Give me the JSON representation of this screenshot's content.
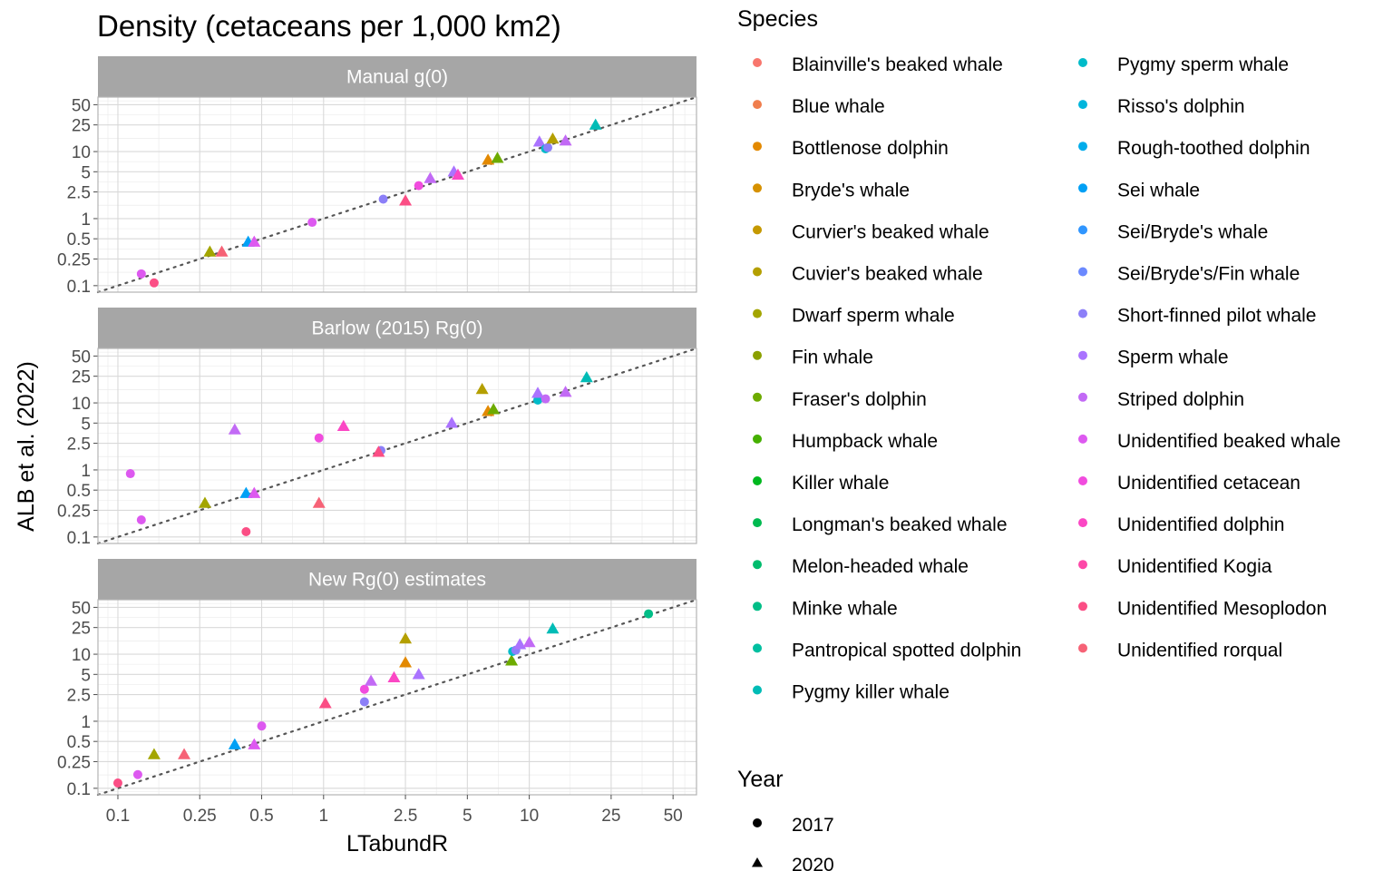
{
  "chart_data": {
    "type": "scatter",
    "title": "Density (cetaceans per 1,000 km2)",
    "xlabel": "LTabundR",
    "ylabel": "ALB et al. (2022)",
    "x_scale": "log10",
    "y_scale": "log10",
    "xlim": [
      0.08,
      65
    ],
    "ylim": [
      0.08,
      65
    ],
    "x_ticks": [
      "0.1",
      "0.25",
      "0.5",
      "1",
      "2.5",
      "5",
      "10",
      "25",
      "50"
    ],
    "y_ticks": [
      "0.1",
      "0.25",
      "0.5",
      "1",
      "2.5",
      "5",
      "10",
      "25",
      "50"
    ],
    "reference_line": "y = x",
    "panels": [
      {
        "label": "Manual g(0)",
        "points": [
          {
            "species": "Unidentified beaked whale",
            "year": "2017",
            "x": 0.13,
            "y": 0.15
          },
          {
            "species": "Unidentified Mesoplodon",
            "year": "2017",
            "x": 0.15,
            "y": 0.11
          },
          {
            "species": "Dwarf sperm whale",
            "year": "2020",
            "x": 0.28,
            "y": 0.32
          },
          {
            "species": "Unidentified rorqual",
            "year": "2020",
            "x": 0.32,
            "y": 0.32
          },
          {
            "species": "Sei whale",
            "year": "2020",
            "x": 0.43,
            "y": 0.45
          },
          {
            "species": "Unidentified beaked whale",
            "year": "2020",
            "x": 0.46,
            "y": 0.45
          },
          {
            "species": "Unidentified beaked whale",
            "year": "2017",
            "x": 0.88,
            "y": 0.88
          },
          {
            "species": "Short-finned pilot whale",
            "year": "2017",
            "x": 1.95,
            "y": 1.95
          },
          {
            "species": "Unidentified Mesoplodon",
            "year": "2020",
            "x": 2.5,
            "y": 1.85
          },
          {
            "species": "Unidentified cetacean",
            "year": "2017",
            "x": 2.9,
            "y": 3.1
          },
          {
            "species": "Striped dolphin",
            "year": "2020",
            "x": 3.3,
            "y": 4.0
          },
          {
            "species": "Sperm whale",
            "year": "2020",
            "x": 4.3,
            "y": 5.0
          },
          {
            "species": "Unidentified dolphin",
            "year": "2020",
            "x": 4.5,
            "y": 4.5
          },
          {
            "species": "Bottlenose dolphin",
            "year": "2020",
            "x": 6.3,
            "y": 7.5
          },
          {
            "species": "Fraser's dolphin",
            "year": "2020",
            "x": 7.0,
            "y": 8.0
          },
          {
            "species": "Sperm whale",
            "year": "2020",
            "x": 11.2,
            "y": 14.0
          },
          {
            "species": "Pygmy sperm whale",
            "year": "2017",
            "x": 12.0,
            "y": 11.0
          },
          {
            "species": "Short-finned pilot whale",
            "year": "2017",
            "x": 12.3,
            "y": 11.5
          },
          {
            "species": "Cuvier's beaked whale",
            "year": "2020",
            "x": 13.0,
            "y": 15.5
          },
          {
            "species": "Striped dolphin",
            "year": "2020",
            "x": 15.0,
            "y": 14.5
          },
          {
            "species": "Pygmy killer whale",
            "year": "2020",
            "x": 21.0,
            "y": 25.0
          }
        ]
      },
      {
        "label": "Barlow (2015) Rg(0)",
        "points": [
          {
            "species": "Unidentified beaked whale",
            "year": "2017",
            "x": 0.115,
            "y": 0.88
          },
          {
            "species": "Unidentified beaked whale",
            "year": "2017",
            "x": 0.13,
            "y": 0.18
          },
          {
            "species": "Dwarf sperm whale",
            "year": "2020",
            "x": 0.265,
            "y": 0.32
          },
          {
            "species": "Striped dolphin",
            "year": "2020",
            "x": 0.37,
            "y": 4.0
          },
          {
            "species": "Unidentified Mesoplodon",
            "year": "2017",
            "x": 0.42,
            "y": 0.12
          },
          {
            "species": "Sei whale",
            "year": "2020",
            "x": 0.42,
            "y": 0.45
          },
          {
            "species": "Unidentified beaked whale",
            "year": "2020",
            "x": 0.46,
            "y": 0.45
          },
          {
            "species": "Unidentified cetacean",
            "year": "2017",
            "x": 0.95,
            "y": 3.0
          },
          {
            "species": "Unidentified rorqual",
            "year": "2020",
            "x": 0.95,
            "y": 0.32
          },
          {
            "species": "Unidentified dolphin",
            "year": "2020",
            "x": 1.25,
            "y": 4.5
          },
          {
            "species": "Short-finned pilot whale",
            "year": "2017",
            "x": 1.9,
            "y": 1.95
          },
          {
            "species": "Unidentified Mesoplodon",
            "year": "2020",
            "x": 1.85,
            "y": 1.85
          },
          {
            "species": "Sperm whale",
            "year": "2020",
            "x": 4.2,
            "y": 5.0
          },
          {
            "species": "Cuvier's beaked whale",
            "year": "2020",
            "x": 5.9,
            "y": 16.0
          },
          {
            "species": "Bottlenose dolphin",
            "year": "2020",
            "x": 6.3,
            "y": 7.5
          },
          {
            "species": "Fraser's dolphin",
            "year": "2020",
            "x": 6.7,
            "y": 8.0
          },
          {
            "species": "Pygmy sperm whale",
            "year": "2017",
            "x": 11.0,
            "y": 11.0
          },
          {
            "species": "Sperm whale",
            "year": "2020",
            "x": 11.0,
            "y": 14.0
          },
          {
            "species": "Striped dolphin",
            "year": "2017",
            "x": 12.0,
            "y": 11.5
          },
          {
            "species": "Striped dolphin",
            "year": "2020",
            "x": 15.0,
            "y": 14.5
          },
          {
            "species": "Pygmy killer whale",
            "year": "2020",
            "x": 19.0,
            "y": 24.0
          }
        ]
      },
      {
        "label": "New Rg(0) estimates",
        "points": [
          {
            "species": "Unidentified Mesoplodon",
            "year": "2017",
            "x": 0.1,
            "y": 0.12
          },
          {
            "species": "Unidentified beaked whale",
            "year": "2017",
            "x": 0.125,
            "y": 0.16
          },
          {
            "species": "Dwarf sperm whale",
            "year": "2020",
            "x": 0.15,
            "y": 0.32
          },
          {
            "species": "Unidentified rorqual",
            "year": "2020",
            "x": 0.21,
            "y": 0.32
          },
          {
            "species": "Sei whale",
            "year": "2020",
            "x": 0.37,
            "y": 0.45
          },
          {
            "species": "Unidentified beaked whale",
            "year": "2020",
            "x": 0.46,
            "y": 0.45
          },
          {
            "species": "Unidentified beaked whale",
            "year": "2017",
            "x": 0.5,
            "y": 0.85
          },
          {
            "species": "Unidentified Mesoplodon",
            "year": "2020",
            "x": 1.02,
            "y": 1.85
          },
          {
            "species": "Unidentified cetacean",
            "year": "2017",
            "x": 1.58,
            "y": 3.0
          },
          {
            "species": "Short-finned pilot whale",
            "year": "2017",
            "x": 1.58,
            "y": 1.95
          },
          {
            "species": "Striped dolphin",
            "year": "2020",
            "x": 1.7,
            "y": 4.0
          },
          {
            "species": "Unidentified dolphin",
            "year": "2020",
            "x": 2.2,
            "y": 4.5
          },
          {
            "species": "Cuvier's beaked whale",
            "year": "2020",
            "x": 2.5,
            "y": 17.0
          },
          {
            "species": "Bottlenose dolphin",
            "year": "2020",
            "x": 2.5,
            "y": 7.5
          },
          {
            "species": "Sperm whale",
            "year": "2020",
            "x": 2.9,
            "y": 5.0
          },
          {
            "species": "Fraser's dolphin",
            "year": "2020",
            "x": 8.2,
            "y": 8.0
          },
          {
            "species": "Pygmy sperm whale",
            "year": "2017",
            "x": 8.3,
            "y": 11.0
          },
          {
            "species": "Short-finned pilot whale",
            "year": "2017",
            "x": 8.6,
            "y": 11.5
          },
          {
            "species": "Sperm whale",
            "year": "2020",
            "x": 9.0,
            "y": 14.0
          },
          {
            "species": "Striped dolphin",
            "year": "2020",
            "x": 10.0,
            "y": 15.0
          },
          {
            "species": "Pygmy killer whale",
            "year": "2020",
            "x": 13.0,
            "y": 24.0
          },
          {
            "species": "Minke whale",
            "year": "2017",
            "x": 38.0,
            "y": 40.0
          }
        ]
      }
    ],
    "legend": {
      "species_title": "Species",
      "species": [
        {
          "name": "Blainville's beaked whale",
          "color": "#F8766D"
        },
        {
          "name": "Blue whale",
          "color": "#F07E4D"
        },
        {
          "name": "Bottlenose dolphin",
          "color": "#E38900"
        },
        {
          "name": "Bryde's whale",
          "color": "#D69100"
        },
        {
          "name": "Curvier's beaked whale",
          "color": "#C59900"
        },
        {
          "name": "Cuvier's beaked whale",
          "color": "#B49F00"
        },
        {
          "name": "Dwarf sperm whale",
          "color": "#A3A500"
        },
        {
          "name": "Fin whale",
          "color": "#8BA000"
        },
        {
          "name": "Fraser's dolphin",
          "color": "#6DAB00"
        },
        {
          "name": "Humpback whale",
          "color": "#45B000"
        },
        {
          "name": "Killer whale",
          "color": "#00B81F"
        },
        {
          "name": "Longman's beaked whale",
          "color": "#00BA50"
        },
        {
          "name": "Melon-headed whale",
          "color": "#00BC6D"
        },
        {
          "name": "Minke whale",
          "color": "#00BE87"
        },
        {
          "name": "Pantropical spotted dolphin",
          "color": "#00BFA0"
        },
        {
          "name": "Pygmy killer whale",
          "color": "#00BCB6"
        },
        {
          "name": "Pygmy sperm whale",
          "color": "#00BBC9"
        },
        {
          "name": "Risso's dolphin",
          "color": "#00B5DC"
        },
        {
          "name": "Rough-toothed dolphin",
          "color": "#00ACEB"
        },
        {
          "name": "Sei whale",
          "color": "#00A0F5"
        },
        {
          "name": "Sei/Bryde's whale",
          "color": "#3096FF"
        },
        {
          "name": "Sei/Bryde's/Fin whale",
          "color": "#6B89FF"
        },
        {
          "name": "Short-finned pilot whale",
          "color": "#8C7FF8"
        },
        {
          "name": "Sperm whale",
          "color": "#AA73FF"
        },
        {
          "name": "Striped dolphin",
          "color": "#C26AF5"
        },
        {
          "name": "Unidentified beaked whale",
          "color": "#DD59F0"
        },
        {
          "name": "Unidentified cetacean",
          "color": "#F14CDE"
        },
        {
          "name": "Unidentified dolphin",
          "color": "#FB47C4"
        },
        {
          "name": "Unidentified Kogia",
          "color": "#FD48A8"
        },
        {
          "name": "Unidentified Mesoplodon",
          "color": "#FB4E85"
        },
        {
          "name": "Unidentified rorqual",
          "color": "#F66276"
        }
      ],
      "year_title": "Year",
      "years": [
        {
          "label": "2017",
          "shape": "circle"
        },
        {
          "label": "2020",
          "shape": "triangle"
        }
      ]
    }
  }
}
